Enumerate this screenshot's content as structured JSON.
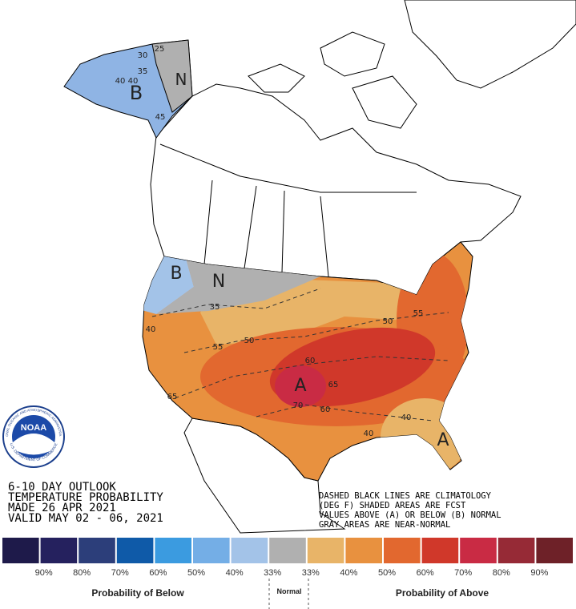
{
  "header": {
    "lines": [
      "6-10 DAY OUTLOOK",
      "TEMPERATURE PROBABILITY",
      "MADE  26 APR 2021",
      "VALID  MAY 02 - 06, 2021"
    ]
  },
  "notes": [
    "DASHED BLACK LINES ARE CLIMATOLOGY",
    "(DEG F) SHADED AREAS ARE FCST",
    "VALUES ABOVE (A) OR BELOW (B) NORMAL",
    "GRAY AREAS ARE NEAR-NORMAL"
  ],
  "logo": {
    "name": "NOAA",
    "ring_top": "NATIONAL OCEANIC AND ATMOSPHERIC ADMINISTRATION",
    "ring_bottom": "U.S. DEPARTMENT OF COMMERCE"
  },
  "map_labels": [
    "B",
    "N",
    "40",
    "40",
    "35",
    "30",
    "25",
    "45",
    "B",
    "N",
    "35",
    "40",
    "55",
    "50",
    "65",
    "A",
    "60",
    "65",
    "70",
    "60",
    "50",
    "55",
    "40",
    "40",
    "A"
  ],
  "legend": {
    "colors": [
      "#1e1a4a",
      "#25215e",
      "#2c3e7a",
      "#0f5aa8",
      "#3b9be0",
      "#74aee6",
      "#a3c3e8",
      "#b0b0b0",
      "#e8b468",
      "#e8913f",
      "#e2682f",
      "#d0382a",
      "#c92b44",
      "#962a36",
      "#6e2128"
    ],
    "labels": [
      "90%",
      "80%",
      "70%",
      "60%",
      "50%",
      "40%",
      "33%",
      "33%",
      "40%",
      "50%",
      "60%",
      "70%",
      "80%",
      "90%"
    ],
    "below": "Probability of Below",
    "normal": "Normal",
    "above": "Probability of Above"
  }
}
